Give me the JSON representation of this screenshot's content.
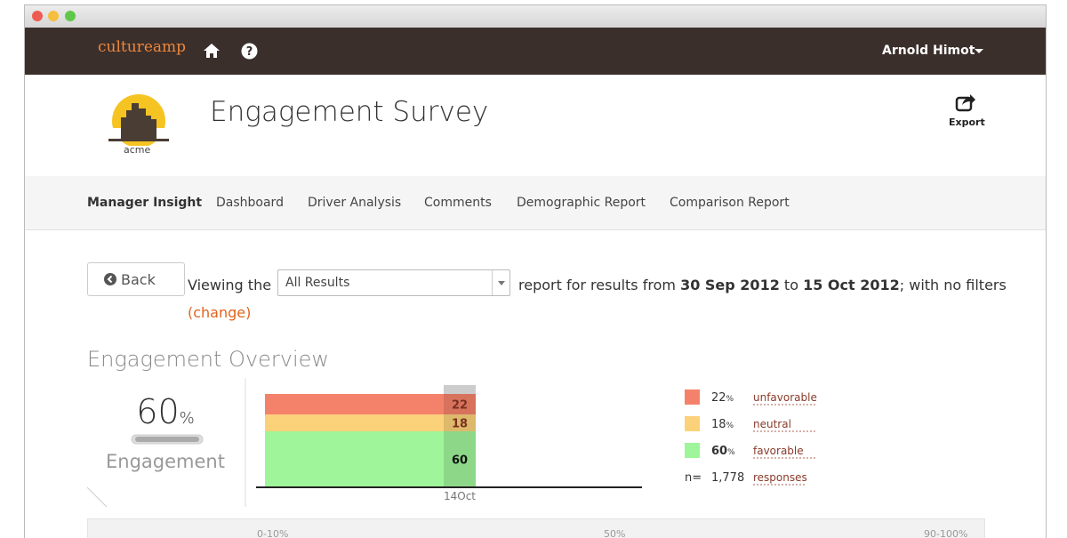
{
  "topbar": {
    "brand": "cultureamp",
    "user": "Arnold Himot"
  },
  "header": {
    "logo_text": "acme",
    "title": "Engagement Survey",
    "export": "Export"
  },
  "tabs": [
    "Manager Insight",
    "Dashboard",
    "Driver Analysis",
    "Comments",
    "Demographic Report",
    "Comparison Report"
  ],
  "filter": {
    "back": "Back",
    "viewing": "Viewing the",
    "select": "All Results",
    "report": "report for results from",
    "from": "30 Sep 2012",
    "to": "to",
    "until": "15 Oct 2012",
    "filters": "; with no filters",
    "change": "(change)"
  },
  "overview": {
    "title": "Engagement Overview",
    "score": 60,
    "unit": "%",
    "label": "Engagement"
  },
  "chart_data": {
    "type": "stacked-area",
    "categories": [
      "14Oct"
    ],
    "series": [
      {
        "name": "unfavorable",
        "color": "#f4826a",
        "values": [
          22
        ]
      },
      {
        "name": "neutral",
        "color": "#fbd27a",
        "values": [
          18
        ]
      },
      {
        "name": "favorable",
        "color": "#9ff59a",
        "values": [
          60
        ]
      }
    ],
    "value_unit": "%",
    "ylim": [
      0,
      100
    ]
  },
  "responses": {
    "prefix": "n=",
    "count": "1,778",
    "label": "responses"
  },
  "scale": [
    "0-10%",
    "50%",
    "90-100%"
  ]
}
